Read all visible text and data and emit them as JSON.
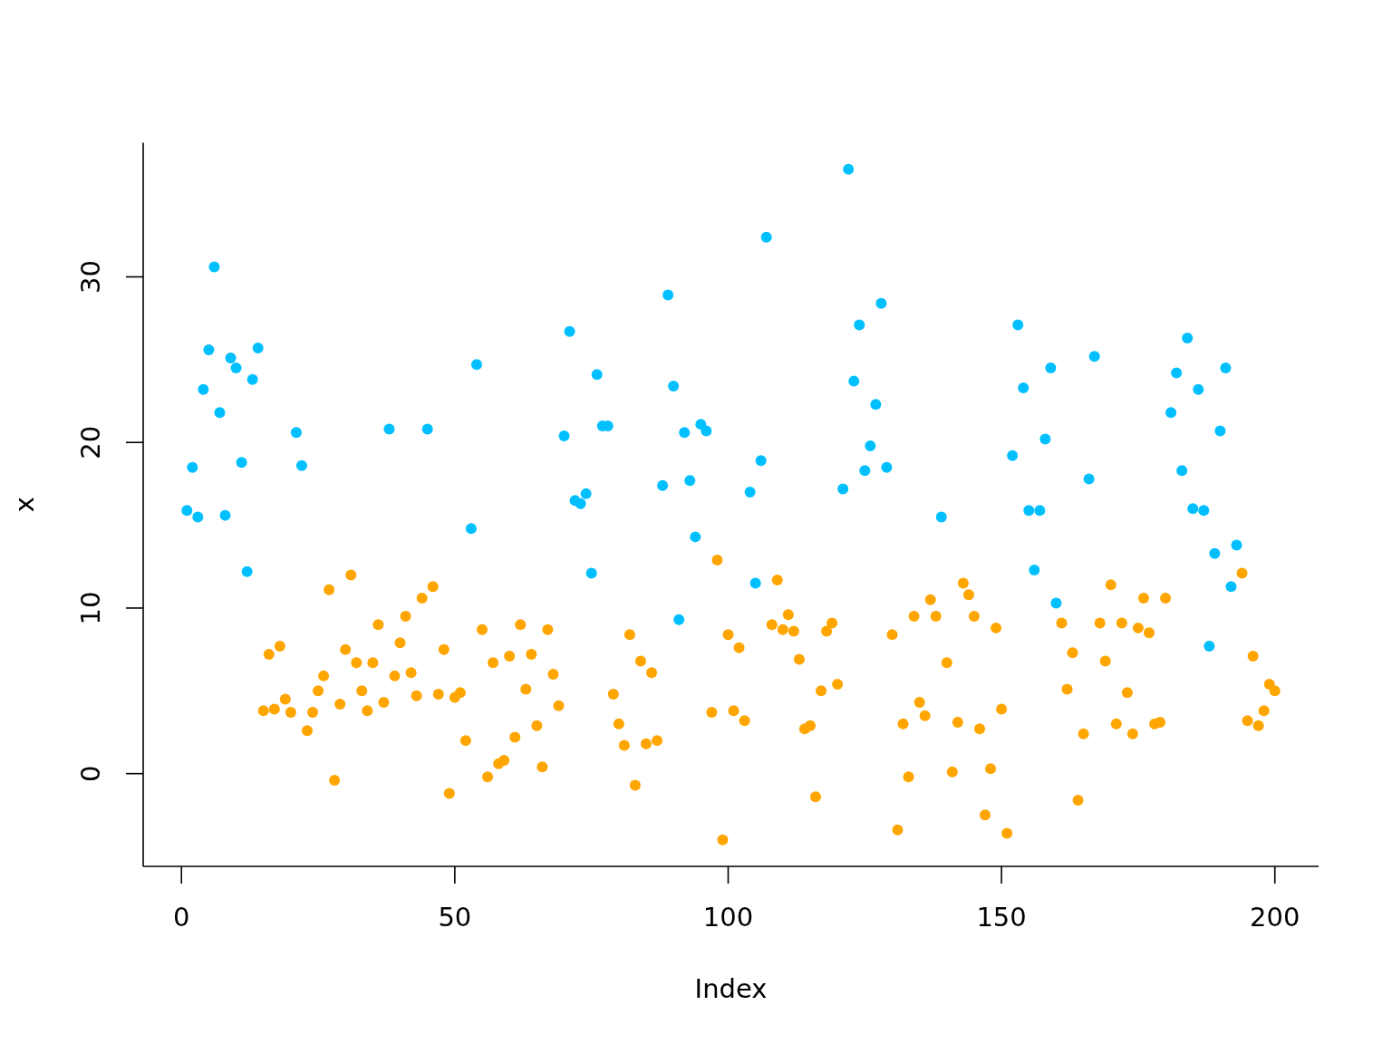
{
  "chart_data": {
    "type": "scatter",
    "xlabel": "Index",
    "ylabel": "x",
    "xlim": [
      -7,
      208
    ],
    "ylim": [
      -5.6,
      38.1
    ],
    "xticks": [
      0,
      50,
      100,
      150,
      200
    ],
    "yticks": [
      0,
      10,
      20,
      30
    ],
    "marker": "circle",
    "series": [
      {
        "color": "#00bfff",
        "x": [
          1,
          2,
          3,
          4,
          5,
          6,
          7,
          8,
          9,
          10,
          11,
          12,
          13,
          14,
          21,
          22,
          38,
          45,
          53,
          54,
          70,
          71,
          72,
          73,
          74,
          75,
          76,
          77,
          78,
          88,
          89,
          90,
          91,
          92,
          93,
          94,
          95,
          96,
          104,
          105,
          106,
          107,
          121,
          122,
          123,
          124,
          125,
          126,
          127,
          128,
          129,
          139,
          152,
          153,
          154,
          155,
          156,
          157,
          158,
          159,
          160,
          166,
          167,
          181,
          182,
          183,
          184,
          185,
          186,
          187,
          188,
          189,
          190,
          191,
          192,
          193
        ],
        "values": [
          15.9,
          18.5,
          15.5,
          23.2,
          25.6,
          30.6,
          21.8,
          15.6,
          25.1,
          24.5,
          18.8,
          12.2,
          23.8,
          25.7,
          20.6,
          18.6,
          20.8,
          20.8,
          14.8,
          24.7,
          20.4,
          26.7,
          16.5,
          16.3,
          16.9,
          12.1,
          24.1,
          21.0,
          21.0,
          17.4,
          28.9,
          23.4,
          9.3,
          20.6,
          17.7,
          14.3,
          21.1,
          20.7,
          17.0,
          11.5,
          18.9,
          32.4,
          17.2,
          36.5,
          23.7,
          27.1,
          18.3,
          19.8,
          22.3,
          28.4,
          18.5,
          15.5,
          19.2,
          27.1,
          23.3,
          15.9,
          12.3,
          15.9,
          20.2,
          24.5,
          10.3,
          17.8,
          25.2,
          21.8,
          24.2,
          18.3,
          26.3,
          16.0,
          23.2,
          15.9,
          7.7,
          13.3,
          20.7,
          24.5,
          11.3,
          13.8
        ]
      },
      {
        "color": "#ffa500",
        "x": [
          15,
          16,
          17,
          18,
          19,
          20,
          23,
          24,
          25,
          26,
          27,
          28,
          29,
          30,
          31,
          32,
          33,
          34,
          35,
          36,
          37,
          39,
          40,
          41,
          42,
          43,
          44,
          46,
          47,
          48,
          49,
          50,
          51,
          52,
          55,
          56,
          57,
          58,
          59,
          60,
          61,
          62,
          63,
          64,
          65,
          66,
          67,
          68,
          69,
          79,
          80,
          81,
          82,
          83,
          84,
          85,
          86,
          87,
          97,
          98,
          99,
          100,
          101,
          102,
          103,
          108,
          109,
          110,
          111,
          112,
          113,
          114,
          115,
          116,
          117,
          118,
          119,
          120,
          130,
          131,
          132,
          133,
          134,
          135,
          136,
          137,
          138,
          140,
          141,
          142,
          143,
          144,
          145,
          146,
          147,
          148,
          149,
          150,
          151,
          161,
          162,
          163,
          164,
          165,
          168,
          169,
          170,
          171,
          172,
          173,
          174,
          175,
          176,
          177,
          178,
          179,
          180,
          194,
          195,
          196,
          197,
          198,
          199,
          200
        ],
        "values": [
          3.8,
          7.2,
          3.9,
          7.7,
          4.5,
          3.7,
          2.6,
          3.7,
          5.0,
          5.9,
          11.1,
          -0.4,
          4.2,
          7.5,
          12.0,
          6.7,
          5.0,
          3.8,
          6.7,
          9.0,
          4.3,
          5.9,
          7.9,
          9.5,
          6.1,
          4.7,
          10.6,
          11.3,
          4.8,
          7.5,
          -1.2,
          4.6,
          4.9,
          2.0,
          8.7,
          -0.2,
          6.7,
          0.6,
          0.8,
          7.1,
          2.2,
          9.0,
          5.1,
          7.2,
          2.9,
          0.4,
          8.7,
          6.0,
          4.1,
          4.8,
          3.0,
          1.7,
          8.4,
          -0.7,
          6.8,
          1.8,
          6.1,
          2.0,
          3.7,
          12.9,
          -4.0,
          8.4,
          3.8,
          7.6,
          3.2,
          9.0,
          11.7,
          8.7,
          9.6,
          8.6,
          6.9,
          2.7,
          2.9,
          -1.4,
          5.0,
          8.6,
          9.1,
          5.4,
          8.4,
          -3.4,
          3.0,
          -0.2,
          9.5,
          4.3,
          3.5,
          10.5,
          9.5,
          6.7,
          0.1,
          3.1,
          11.5,
          10.8,
          9.5,
          2.7,
          -2.5,
          0.3,
          8.8,
          3.9,
          -3.6,
          9.1,
          5.1,
          7.3,
          -1.6,
          2.4,
          9.1,
          6.8,
          11.4,
          3.0,
          9.1,
          4.9,
          2.4,
          8.8,
          10.6,
          8.5,
          3.0,
          3.1,
          10.6,
          12.1,
          3.2,
          7.1,
          2.9,
          3.8,
          5.4,
          5.0
        ]
      }
    ]
  }
}
